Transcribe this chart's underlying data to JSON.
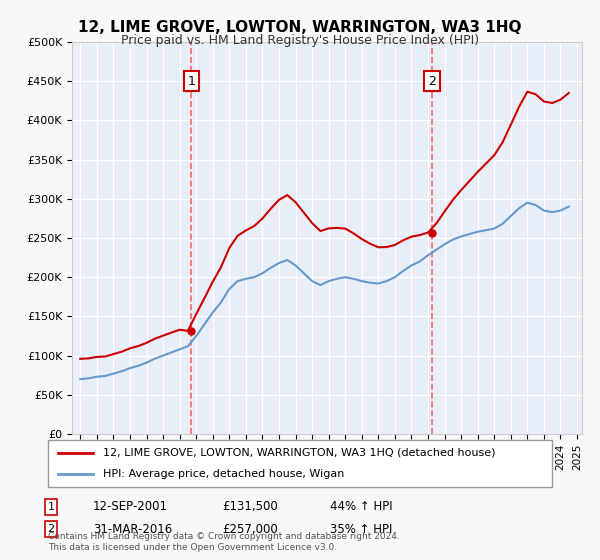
{
  "title": "12, LIME GROVE, LOWTON, WARRINGTON, WA3 1HQ",
  "subtitle": "Price paid vs. HM Land Registry's House Price Index (HPI)",
  "legend_line1": "12, LIME GROVE, LOWTON, WARRINGTON, WA3 1HQ (detached house)",
  "legend_line2": "HPI: Average price, detached house, Wigan",
  "sale1_label": "1",
  "sale1_date": "12-SEP-2001",
  "sale1_price": "£131,500",
  "sale1_hpi": "44% ↑ HPI",
  "sale1_year": 2001.71,
  "sale1_value": 131500,
  "sale2_label": "2",
  "sale2_date": "31-MAR-2016",
  "sale2_price": "£257,000",
  "sale2_hpi": "35% ↑ HPI",
  "sale2_year": 2016.25,
  "sale2_value": 257000,
  "footer": "Contains HM Land Registry data © Crown copyright and database right 2024.\nThis data is licensed under the Open Government Licence v3.0.",
  "ylim": [
    0,
    500000
  ],
  "yticks": [
    0,
    50000,
    100000,
    150000,
    200000,
    250000,
    300000,
    350000,
    400000,
    450000,
    500000
  ],
  "property_color": "#cc0000",
  "hpi_color": "#6699cc",
  "bg_color": "#e8eef8",
  "grid_color": "#ffffff",
  "vline_color": "#ff6666",
  "marker_box_color": "#cc0000"
}
